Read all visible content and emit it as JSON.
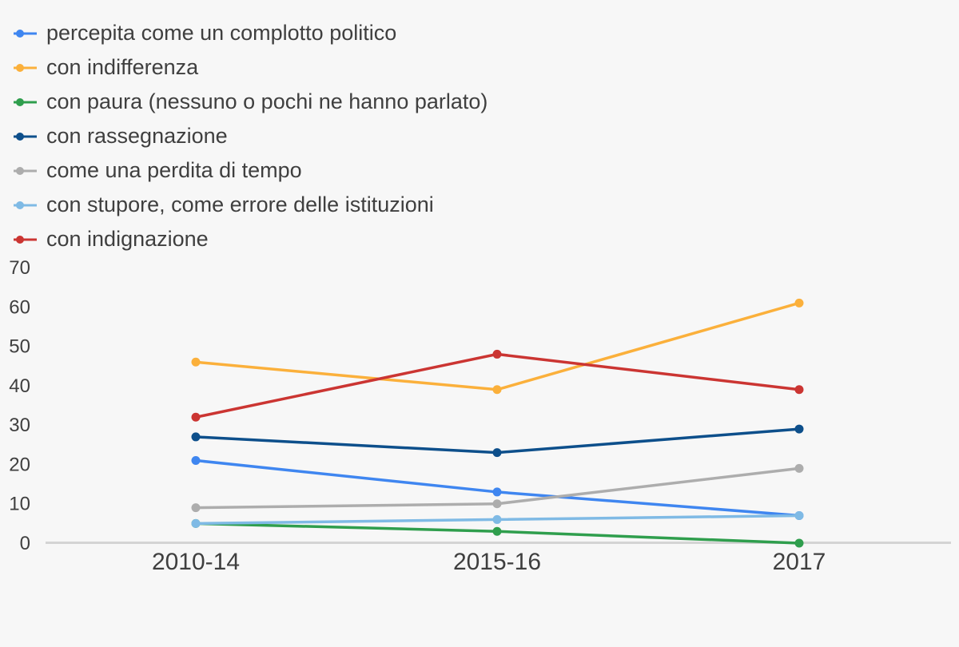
{
  "chart_data": {
    "type": "line",
    "categories": [
      "2010-14",
      "2015-16",
      "2017"
    ],
    "series": [
      {
        "name": "percepita come un complotto politico",
        "color": "#3F86F0",
        "values": [
          21,
          13,
          7
        ]
      },
      {
        "name": "con indifferenza",
        "color": "#FBB03B",
        "values": [
          46,
          39,
          61
        ]
      },
      {
        "name": "con paura (nessuno o pochi ne hanno parlato)",
        "color": "#2F9E4D",
        "values": [
          5,
          3,
          0
        ]
      },
      {
        "name": "con rassegnazione",
        "color": "#0D4F8B",
        "values": [
          27,
          23,
          29
        ]
      },
      {
        "name": "come una perdita di tempo",
        "color": "#ADADAD",
        "values": [
          9,
          10,
          19
        ]
      },
      {
        "name": "con stupore, come errore delle istituzioni",
        "color": "#7FBAE5",
        "values": [
          5,
          6,
          7
        ]
      },
      {
        "name": "con indignazione",
        "color": "#CB3532",
        "values": [
          32,
          48,
          39
        ]
      }
    ],
    "y_ticks": [
      0,
      10,
      20,
      30,
      40,
      50,
      60,
      70
    ],
    "ylim": [
      0,
      70
    ],
    "title": "",
    "xlabel": "",
    "ylabel": "",
    "legend_position": "top-left",
    "grid": "baseline-only",
    "marker": "circle"
  },
  "colors": {
    "background": "#F7F7F7",
    "axis_line": "#D4D4D4",
    "text": "#3F3F3F"
  }
}
